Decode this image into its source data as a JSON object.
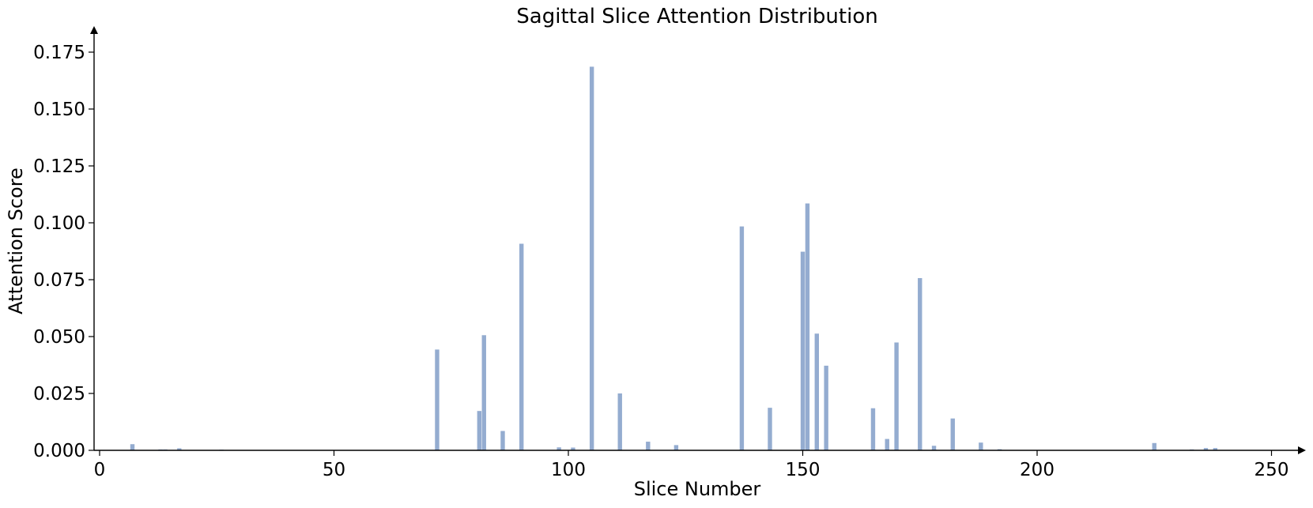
{
  "chart_data": {
    "type": "bar",
    "title": "Sagittal Slice Attention Distribution",
    "xlabel": "Slice Number",
    "ylabel": "Attention Score",
    "xlim": [
      -1,
      257
    ],
    "ylim": [
      0,
      0.185
    ],
    "x_ticks": [
      0,
      50,
      100,
      150,
      200,
      250
    ],
    "x_tick_labels": [
      "0",
      "50",
      "100",
      "150",
      "200",
      "250"
    ],
    "y_ticks": [
      0,
      0.025,
      0.05,
      0.075,
      0.1,
      0.125,
      0.15,
      0.175
    ],
    "y_tick_labels": [
      "0.000",
      "0.025",
      "0.050",
      "0.075",
      "0.100",
      "0.125",
      "0.150",
      "0.175"
    ],
    "grid": false,
    "bar_color": "#94acd0",
    "x": [
      7,
      13,
      14,
      17,
      26,
      72,
      81,
      82,
      86,
      90,
      98,
      101,
      105,
      111,
      117,
      123,
      137,
      143,
      150,
      151,
      153,
      155,
      165,
      168,
      170,
      175,
      178,
      182,
      188,
      192,
      225,
      233,
      236,
      238
    ],
    "values": [
      0.0027,
      0.0004,
      0.0004,
      0.0009,
      0.0003,
      0.0443,
      0.0173,
      0.0506,
      0.0085,
      0.0908,
      0.0013,
      0.0012,
      0.1686,
      0.025,
      0.0038,
      0.0023,
      0.0984,
      0.0187,
      0.0873,
      0.1085,
      0.0513,
      0.0372,
      0.0185,
      0.005,
      0.0474,
      0.0757,
      0.002,
      0.014,
      0.0034,
      0.0005,
      0.0032,
      0.0004,
      0.001,
      0.001
    ]
  }
}
